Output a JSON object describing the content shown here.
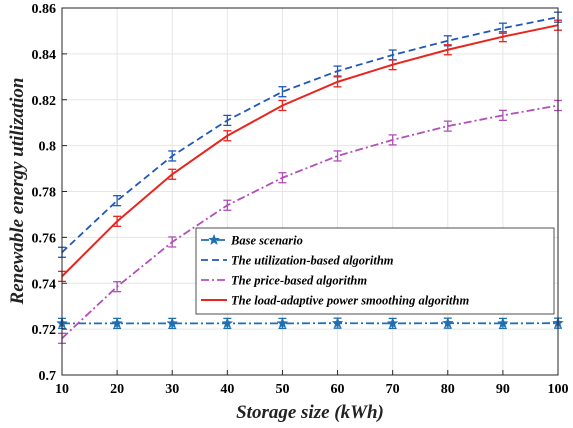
{
  "chart_data": {
    "type": "line",
    "xlabel": "Storage size (kWh)",
    "ylabel": "Renewable energy utilization",
    "x": [
      10,
      20,
      30,
      40,
      50,
      60,
      70,
      80,
      90,
      100
    ],
    "xlim": [
      10,
      100
    ],
    "ylim": [
      0.7,
      0.86
    ],
    "x_ticks": [
      "10",
      "20",
      "30",
      "40",
      "50",
      "60",
      "70",
      "80",
      "90",
      "100"
    ],
    "y_ticks": [
      "0.7",
      "0.72",
      "0.74",
      "0.76",
      "0.78",
      "0.8",
      "0.82",
      "0.84",
      "0.86"
    ],
    "grid": true,
    "legend_position": "center-right",
    "error_bars": true,
    "series": [
      {
        "name": "Base scenario",
        "color": "#1f6fb5",
        "style": "dash-dot",
        "marker": "star",
        "values": [
          0.7225,
          0.7225,
          0.7225,
          0.7225,
          0.7225,
          0.7226,
          0.7225,
          0.7226,
          0.7225,
          0.7226
        ]
      },
      {
        "name": "The utilization-based algorithm",
        "color": "#2158b8",
        "style": "dashed",
        "marker": "none",
        "values": [
          0.7535,
          0.776,
          0.7955,
          0.811,
          0.8235,
          0.8325,
          0.8395,
          0.8457,
          0.8512,
          0.856
        ]
      },
      {
        "name": "The price-based algorithm",
        "color": "#b050b8",
        "style": "dash-dot",
        "marker": "none",
        "values": [
          0.716,
          0.7385,
          0.758,
          0.774,
          0.786,
          0.7955,
          0.8025,
          0.8085,
          0.8132,
          0.8175
        ]
      },
      {
        "name": "The load-adaptive power smoothing algorithm",
        "color": "#e8251f",
        "style": "solid",
        "marker": "none",
        "values": [
          0.743,
          0.767,
          0.7875,
          0.8043,
          0.8175,
          0.8278,
          0.8353,
          0.8418,
          0.8475,
          0.8525
        ]
      }
    ]
  }
}
